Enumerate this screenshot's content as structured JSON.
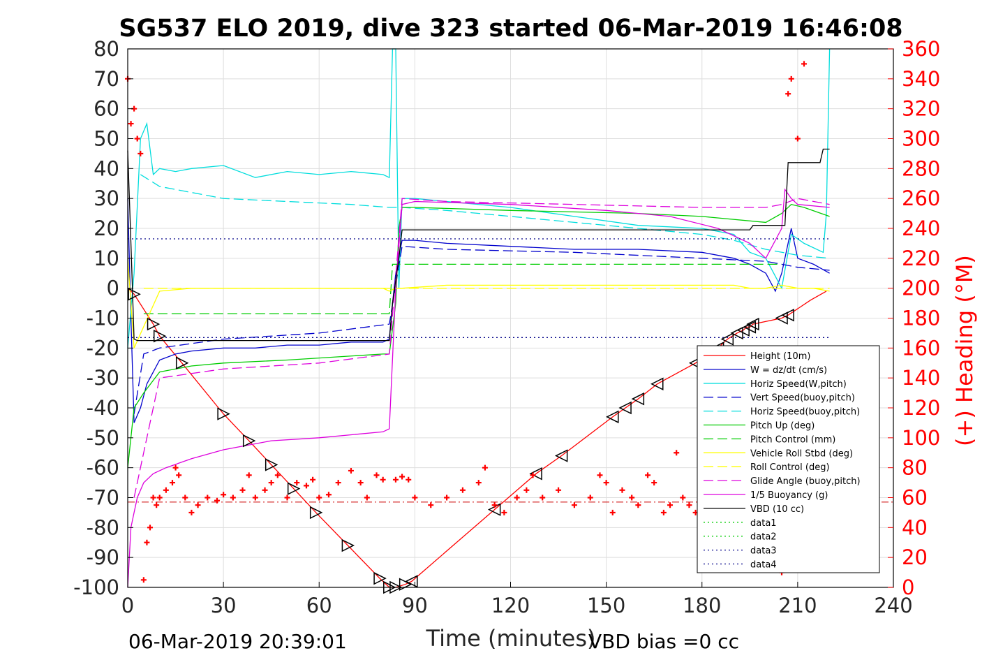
{
  "chart_data": {
    "type": "line",
    "title": "SG537 ELO 2019, dive 323 started 06-Mar-2019 16:46:08",
    "xlabel": "Time (minutes)",
    "ylabel_right": "(+) Heading (°M)",
    "xlim": [
      0,
      240
    ],
    "ylim": [
      -100,
      80
    ],
    "ylim_right": [
      0,
      360
    ],
    "x_ticks": [
      "0",
      "30",
      "60",
      "90",
      "120",
      "150",
      "180",
      "210",
      "240"
    ],
    "y_ticks": [
      "80",
      "70",
      "60",
      "50",
      "40",
      "30",
      "20",
      "10",
      "0",
      "-10",
      "-20",
      "-30",
      "-40",
      "-50",
      "-60",
      "-70",
      "-80",
      "-90",
      "-100"
    ],
    "y_ticks_right": [
      "360",
      "340",
      "320",
      "300",
      "280",
      "260",
      "240",
      "220",
      "200",
      "180",
      "160",
      "140",
      "120",
      "100",
      "80",
      "60",
      "40",
      "20",
      "0"
    ],
    "grid": true,
    "legend_position": "lower-right",
    "footer_left": "06-Mar-2019 20:39:01",
    "footer_right": "VBD bias =0 cc",
    "series": [
      {
        "name": "Height (10m)",
        "color": "#ff0000",
        "style": "solid",
        "x": [
          0,
          2,
          8,
          10,
          17,
          30,
          38,
          45,
          52,
          59,
          69,
          79,
          82,
          84,
          87,
          89,
          115,
          128,
          136,
          152,
          156,
          160,
          166,
          178,
          182,
          185,
          188,
          191,
          193,
          194,
          195,
          196,
          205,
          207,
          214,
          219
        ],
        "y": [
          0,
          -2,
          -12,
          -16,
          -25,
          -42,
          -51,
          -59,
          -67,
          -75,
          -86,
          -97,
          -100,
          -100,
          -99,
          -98,
          -74,
          -62,
          -56,
          -43,
          -40,
          -37,
          -32,
          -25,
          -22,
          -20,
          -17,
          -15,
          -14,
          -13,
          -13,
          -12,
          -10,
          -9,
          -4,
          -1
        ]
      },
      {
        "name": "W = dz/dt (cm/s)",
        "color": "#0000cc",
        "style": "solid",
        "x": [
          0,
          1,
          2,
          4,
          6,
          8,
          10,
          15,
          20,
          30,
          40,
          50,
          60,
          70,
          80,
          82,
          83,
          84,
          86,
          90,
          100,
          120,
          140,
          160,
          180,
          190,
          195,
          200,
          203,
          205,
          208,
          210,
          215,
          220
        ],
        "y": [
          30,
          -10,
          -45,
          -40,
          -32,
          -28,
          -24,
          -22,
          -21,
          -20,
          -20,
          -19,
          -19,
          -18,
          -18,
          -17,
          -5,
          5,
          16,
          16,
          15,
          14,
          13,
          13,
          12,
          10,
          8,
          5,
          -1,
          5,
          20,
          10,
          8,
          5
        ]
      },
      {
        "name": "Horiz Speed(W,pitch)",
        "color": "#00dddd",
        "style": "solid",
        "x": [
          0,
          2,
          4,
          6,
          8,
          10,
          15,
          20,
          30,
          40,
          50,
          60,
          70,
          80,
          82,
          83,
          84,
          85,
          86,
          90,
          100,
          120,
          140,
          160,
          180,
          190,
          195,
          200,
          205,
          208,
          212,
          218,
          219,
          220
        ],
        "y": [
          -20,
          5,
          50,
          55,
          38,
          40,
          39,
          40,
          41,
          37,
          39,
          38,
          39,
          38,
          37,
          80,
          80,
          0,
          30,
          30,
          29,
          27,
          24,
          21,
          20,
          18,
          12,
          10,
          0,
          18,
          15,
          12,
          25,
          80
        ]
      },
      {
        "name": "Vert Speed(buoy,pitch)",
        "color": "#0000cc",
        "style": "dashed",
        "x": [
          2,
          5,
          10,
          30,
          60,
          82,
          86,
          100,
          140,
          180,
          200,
          210,
          220
        ],
        "y": [
          -42,
          -22,
          -20,
          -17,
          -15,
          -12,
          14,
          13,
          12,
          10,
          9,
          7,
          6
        ]
      },
      {
        "name": "Horiz Speed(buoy,pitch)",
        "color": "#00dddd",
        "style": "dashed",
        "x": [
          4,
          10,
          20,
          30,
          50,
          70,
          82,
          86,
          100,
          140,
          180,
          190,
          200,
          210,
          220
        ],
        "y": [
          38,
          34,
          32,
          30,
          29,
          28,
          27,
          27,
          26,
          22,
          18,
          16,
          13,
          11,
          10
        ]
      },
      {
        "name": "Pitch Up (deg)",
        "color": "#00cc00",
        "style": "solid",
        "x": [
          0,
          2,
          5,
          10,
          20,
          30,
          50,
          80,
          82,
          84,
          85,
          86,
          90,
          120,
          160,
          180,
          200,
          205,
          208,
          212,
          220
        ],
        "y": [
          -60,
          -40,
          -35,
          -28,
          -26,
          -25,
          -24,
          -22,
          -22,
          -5,
          20,
          27,
          27,
          26,
          25,
          24,
          22,
          25,
          28,
          27,
          24
        ]
      },
      {
        "name": "Pitch Control (mm)",
        "color": "#00cc00",
        "style": "dashed",
        "x": [
          5,
          82,
          83,
          86,
          200,
          205
        ],
        "y": [
          -8.5,
          -8.5,
          8,
          8,
          8,
          8
        ]
      },
      {
        "name": "Vehicle Roll Stbd (deg)",
        "color": "#ffff00",
        "style": "solid",
        "x": [
          0,
          2,
          10,
          20,
          40,
          60,
          80,
          82,
          84,
          86,
          100,
          120,
          140,
          160,
          180,
          190,
          195,
          200,
          205,
          210,
          215,
          220
        ],
        "y": [
          10,
          -20,
          -1,
          0,
          0,
          0,
          0,
          -1,
          0,
          0,
          1,
          1,
          1,
          1,
          1,
          1,
          0,
          0,
          1,
          0,
          0,
          -1
        ]
      },
      {
        "name": "Roll Control (deg)",
        "color": "#ffff00",
        "style": "dashed",
        "x": [
          5,
          82,
          86,
          200,
          205,
          220
        ],
        "y": [
          0,
          0,
          0,
          0,
          0,
          0
        ]
      },
      {
        "name": "Glide Angle (buoy,pitch)",
        "color": "#dd00dd",
        "style": "dashed",
        "x": [
          2,
          10,
          30,
          60,
          82,
          86,
          100,
          140,
          180,
          200,
          205,
          210,
          220
        ],
        "y": [
          -70,
          -30,
          -27,
          -25,
          -22,
          30,
          29,
          28,
          27,
          27,
          28,
          30,
          28
        ]
      },
      {
        "name": "1/5 Buoyancy (g)",
        "color": "#dd00dd",
        "style": "solid",
        "x": [
          0,
          1,
          2,
          3,
          5,
          8,
          12,
          20,
          30,
          45,
          60,
          80,
          82,
          84,
          86,
          90,
          120,
          150,
          170,
          185,
          195,
          200,
          205,
          206,
          208,
          210,
          220
        ],
        "y": [
          -100,
          -80,
          -75,
          -70,
          -65,
          -62,
          -60,
          -57,
          -54,
          -51,
          -50,
          -48,
          -47,
          0,
          28,
          29,
          28,
          26,
          24,
          20,
          15,
          10,
          20,
          33,
          30,
          28,
          27
        ]
      },
      {
        "name": "VBD (10 cc)",
        "color": "#000000",
        "style": "solid",
        "x": [
          0,
          1,
          2,
          3,
          82,
          83,
          85,
          86,
          87,
          195,
          196,
          206,
          207,
          217,
          218,
          220
        ],
        "y": [
          46,
          15,
          -17,
          -17.5,
          -17.5,
          -5,
          10,
          19.5,
          19.5,
          19.5,
          21,
          21,
          42,
          42,
          46.5,
          46.5
        ]
      },
      {
        "name": "data1",
        "color": "#00cc00",
        "style": "dotted",
        "x": [],
        "y": []
      },
      {
        "name": "data2",
        "color": "#00cc00",
        "style": "dotted",
        "x": [],
        "y": []
      },
      {
        "name": "data3",
        "color": "#000088",
        "style": "dotted",
        "x": [
          0,
          220
        ],
        "y": [
          16.5,
          16.5
        ]
      },
      {
        "name": "data4",
        "color": "#000088",
        "style": "dotted",
        "x": [
          0,
          220
        ],
        "y": [
          -16.5,
          -16.5
        ]
      }
    ],
    "heading_marker": {
      "symbol": "+",
      "color": "#ff0000",
      "x": [
        0,
        1,
        2,
        3,
        4,
        5,
        6,
        7,
        8,
        9,
        10,
        12,
        14,
        15,
        16,
        18,
        20,
        22,
        25,
        28,
        30,
        33,
        36,
        38,
        40,
        43,
        45,
        47,
        50,
        53,
        56,
        58,
        60,
        63,
        66,
        70,
        73,
        75,
        78,
        80,
        84,
        86,
        88,
        90,
        95,
        100,
        105,
        110,
        112,
        115,
        118,
        122,
        125,
        127,
        130,
        135,
        140,
        145,
        148,
        150,
        152,
        155,
        158,
        160,
        163,
        165,
        168,
        170,
        172,
        174,
        176,
        178,
        180,
        185,
        190,
        195,
        198,
        200,
        203,
        205,
        207,
        208,
        210,
        212
      ],
      "y": [
        340,
        310,
        320,
        300,
        290,
        5,
        30,
        40,
        60,
        55,
        60,
        65,
        70,
        80,
        75,
        60,
        50,
        55,
        60,
        58,
        62,
        60,
        65,
        75,
        60,
        65,
        70,
        75,
        60,
        70,
        68,
        72,
        60,
        62,
        70,
        78,
        70,
        60,
        75,
        72,
        72,
        74,
        72,
        60,
        55,
        60,
        65,
        70,
        80,
        55,
        50,
        60,
        65,
        75,
        60,
        65,
        55,
        60,
        75,
        70,
        50,
        65,
        60,
        55,
        75,
        70,
        50,
        55,
        90,
        60,
        55,
        50,
        75,
        90,
        70,
        80,
        75,
        70,
        65,
        10,
        330,
        340,
        300,
        350
      ]
    },
    "heading_reference_line": {
      "color": "#cc0000",
      "style": "dashdot",
      "y_right": 57
    }
  }
}
